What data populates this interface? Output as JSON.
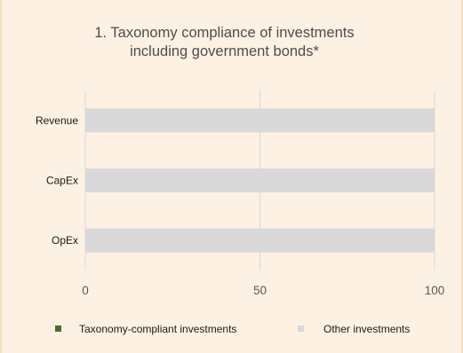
{
  "chart_data": {
    "type": "bar",
    "orientation": "horizontal",
    "stacked": true,
    "title": [
      "1. Taxonomy compliance of investments",
      "including government bonds*"
    ],
    "categories": [
      "Revenue",
      "CapEx",
      "OpEx"
    ],
    "series": [
      {
        "name": "Taxonomy-compliant investments",
        "values": [
          0,
          0,
          0
        ],
        "color": "#4e6b2f"
      },
      {
        "name": "Other investments",
        "values": [
          100,
          100,
          100
        ],
        "color": "#d9d9d9"
      }
    ],
    "xlim": [
      0,
      100
    ],
    "xticks": [
      0,
      50,
      100
    ],
    "grid": "vertical",
    "legend_position": "bottom"
  }
}
